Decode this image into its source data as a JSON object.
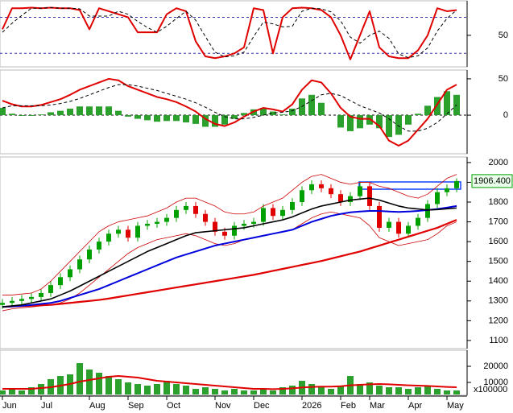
{
  "chart_data": [
    {
      "type": "line",
      "ylim": [
        -1,
        106
      ],
      "yticks": [
        50
      ],
      "levels": [
        80,
        20
      ],
      "level_color": "#3333aa",
      "series": [
        {
          "type": "line",
          "color": "#e00000",
          "width": 2,
          "values": [
            60,
            95,
            95,
            96,
            95,
            96,
            95,
            95,
            92,
            60,
            95,
            90,
            85,
            80,
            55,
            55,
            55,
            85,
            95,
            90,
            40,
            15,
            12,
            15,
            20,
            30,
            95,
            92,
            20,
            80,
            95,
            96,
            95,
            92,
            80,
            50,
            10,
            50,
            90,
            30,
            15,
            12,
            12,
            25,
            50,
            95,
            90,
            92
          ]
        },
        {
          "type": "line",
          "color": "#000000",
          "width": 1,
          "dash": true,
          "values": [
            55,
            70,
            83,
            95,
            95,
            96,
            95,
            95,
            94,
            82,
            82,
            82,
            90,
            85,
            73,
            63,
            55,
            65,
            78,
            90,
            75,
            48,
            22,
            14,
            16,
            22,
            48,
            72,
            69,
            64,
            65,
            90,
            95,
            94,
            89,
            74,
            47,
            37,
            50,
            57,
            45,
            19,
            13,
            16,
            29,
            57,
            78,
            92
          ]
        }
      ]
    },
    {
      "type": "combo",
      "ylim": [
        -52,
        61
      ],
      "yticks": [
        50,
        0
      ],
      "levels": [
        0
      ],
      "level_color": "#000000",
      "series": [
        {
          "type": "bar",
          "color": "#2ca02c",
          "values": [
            10,
            2,
            -1,
            -1,
            1,
            4,
            6,
            9,
            12,
            12,
            12,
            12,
            6,
            -2,
            -5,
            -7,
            -9,
            -8,
            -8,
            -10,
            -12,
            -16,
            -16,
            -13,
            -5,
            3,
            8,
            10,
            5,
            1,
            9,
            23,
            28,
            17,
            0,
            -17,
            -22,
            -18,
            -13,
            -18,
            -30,
            -27,
            -13,
            2,
            13,
            25,
            33,
            28
          ]
        },
        {
          "type": "line",
          "color": "#e00000",
          "width": 2,
          "values": [
            20,
            15,
            12,
            12,
            14,
            18,
            22,
            28,
            35,
            40,
            45,
            50,
            48,
            40,
            35,
            30,
            25,
            22,
            18,
            12,
            5,
            -5,
            -12,
            -15,
            -10,
            -2,
            5,
            10,
            8,
            5,
            15,
            35,
            48,
            45,
            30,
            10,
            -2,
            -5,
            -5,
            -15,
            -35,
            -42,
            -35,
            -20,
            -5,
            15,
            35,
            42
          ]
        },
        {
          "type": "line",
          "color": "#000000",
          "width": 1,
          "dash": true,
          "values": [
            10,
            13,
            13,
            13,
            13,
            14,
            16,
            19,
            23,
            28,
            33,
            38,
            42,
            42,
            40,
            37,
            34,
            30,
            26,
            22,
            17,
            11,
            4,
            -2,
            -5,
            -5,
            -3,
            0,
            3,
            4,
            6,
            12,
            20,
            28,
            30,
            27,
            20,
            13,
            8,
            3,
            -5,
            -15,
            -22,
            -22,
            -18,
            -10,
            2,
            14
          ]
        }
      ]
    },
    {
      "type": "candlestick",
      "ylim": [
        1063,
        2024
      ],
      "yticks": [
        1100,
        1200,
        1300,
        1400,
        1500,
        1600,
        1700,
        1800,
        1900,
        2000
      ],
      "up_color": "#00a000",
      "down_color": "#e00000",
      "ohlc": {
        "open": [
          1280,
          1290,
          1300,
          1310,
          1320,
          1340,
          1380,
          1420,
          1460,
          1510,
          1560,
          1600,
          1640,
          1660,
          1620,
          1680,
          1690,
          1700,
          1720,
          1760,
          1780,
          1740,
          1700,
          1650,
          1630,
          1680,
          1690,
          1700,
          1770,
          1730,
          1760,
          1800,
          1860,
          1890,
          1870,
          1840,
          1800,
          1830,
          1880,
          1780,
          1670,
          1700,
          1640,
          1680,
          1720,
          1790,
          1850,
          1870
        ],
        "high": [
          1310,
          1320,
          1330,
          1340,
          1360,
          1400,
          1440,
          1480,
          1530,
          1580,
          1620,
          1660,
          1680,
          1680,
          1700,
          1710,
          1720,
          1740,
          1780,
          1800,
          1800,
          1760,
          1720,
          1670,
          1700,
          1710,
          1720,
          1790,
          1790,
          1780,
          1820,
          1880,
          1910,
          1910,
          1890,
          1860,
          1850,
          1900,
          1900,
          1800,
          1720,
          1720,
          1700,
          1740,
          1810,
          1870,
          1890,
          1920
        ],
        "low": [
          1260,
          1270,
          1280,
          1290,
          1300,
          1320,
          1360,
          1400,
          1440,
          1490,
          1540,
          1580,
          1620,
          1600,
          1600,
          1660,
          1670,
          1680,
          1700,
          1740,
          1720,
          1680,
          1630,
          1610,
          1610,
          1660,
          1670,
          1680,
          1710,
          1710,
          1740,
          1780,
          1840,
          1850,
          1820,
          1780,
          1780,
          1810,
          1760,
          1650,
          1650,
          1620,
          1620,
          1660,
          1700,
          1770,
          1830,
          1850
        ],
        "close": [
          1290,
          1300,
          1310,
          1320,
          1340,
          1380,
          1420,
          1460,
          1510,
          1560,
          1600,
          1640,
          1660,
          1620,
          1680,
          1690,
          1700,
          1720,
          1760,
          1780,
          1740,
          1700,
          1650,
          1630,
          1680,
          1690,
          1700,
          1770,
          1730,
          1760,
          1800,
          1860,
          1890,
          1870,
          1840,
          1800,
          1830,
          1880,
          1780,
          1670,
          1700,
          1640,
          1680,
          1720,
          1790,
          1850,
          1870,
          1906.4
        ]
      },
      "series": [
        {
          "type": "line",
          "color": "#cc0000",
          "width": 0.8,
          "values": [
            1330,
            1330,
            1335,
            1340,
            1360,
            1400,
            1450,
            1500,
            1550,
            1600,
            1650,
            1680,
            1700,
            1710,
            1720,
            1730,
            1750,
            1770,
            1800,
            1820,
            1820,
            1800,
            1780,
            1750,
            1740,
            1740,
            1750,
            1780,
            1800,
            1820,
            1860,
            1900,
            1930,
            1940,
            1920,
            1900,
            1890,
            1900,
            1900,
            1880,
            1870,
            1850,
            1830,
            1820,
            1840,
            1880,
            1920,
            1940
          ]
        },
        {
          "type": "line",
          "color": "#cc0000",
          "width": 0.8,
          "values": [
            1250,
            1260,
            1265,
            1270,
            1275,
            1280,
            1290,
            1310,
            1340,
            1380,
            1420,
            1460,
            1500,
            1540,
            1570,
            1590,
            1610,
            1620,
            1630,
            1640,
            1630,
            1610,
            1590,
            1580,
            1590,
            1610,
            1620,
            1630,
            1640,
            1650,
            1660,
            1690,
            1720,
            1740,
            1750,
            1740,
            1730,
            1720,
            1680,
            1620,
            1600,
            1580,
            1590,
            1600,
            1610,
            1640,
            1680,
            1700
          ]
        },
        {
          "type": "line",
          "color": "#e00000",
          "width": 2.2,
          "values": [
            1270,
            1272,
            1274,
            1276,
            1278,
            1280,
            1285,
            1290,
            1295,
            1300,
            1305,
            1312,
            1320,
            1328,
            1336,
            1344,
            1352,
            1360,
            1368,
            1376,
            1384,
            1392,
            1400,
            1408,
            1416,
            1424,
            1432,
            1442,
            1452,
            1462,
            1472,
            1482,
            1492,
            1502,
            1514,
            1526,
            1538,
            1550,
            1565,
            1580,
            1595,
            1610,
            1625,
            1640,
            1655,
            1670,
            1690,
            1710
          ]
        },
        {
          "type": "line",
          "color": "#0000dd",
          "width": 2,
          "values": [
            1270,
            1272,
            1275,
            1280,
            1285,
            1290,
            1300,
            1315,
            1330,
            1345,
            1360,
            1380,
            1400,
            1420,
            1440,
            1460,
            1480,
            1500,
            1520,
            1535,
            1550,
            1565,
            1580,
            1590,
            1600,
            1610,
            1620,
            1630,
            1640,
            1650,
            1660,
            1680,
            1700,
            1715,
            1730,
            1740,
            1748,
            1752,
            1755,
            1755,
            1752,
            1750,
            1752,
            1755,
            1760,
            1765,
            1772,
            1780
          ]
        },
        {
          "type": "line",
          "color": "#000000",
          "width": 1.6,
          "values": [
            1270,
            1275,
            1280,
            1290,
            1300,
            1310,
            1330,
            1350,
            1375,
            1400,
            1425,
            1450,
            1475,
            1500,
            1525,
            1550,
            1570,
            1590,
            1610,
            1630,
            1645,
            1650,
            1655,
            1660,
            1665,
            1670,
            1680,
            1690,
            1700,
            1710,
            1725,
            1745,
            1765,
            1780,
            1790,
            1800,
            1810,
            1815,
            1820,
            1810,
            1795,
            1780,
            1770,
            1765,
            1760,
            1762,
            1766,
            1770
          ]
        }
      ],
      "last_price": {
        "value": 1906.4,
        "label": "1906.400"
      }
    },
    {
      "type": "combo",
      "ylim": [
        2500,
        29500
      ],
      "yticks": [
        20000,
        10000
      ],
      "unit_label": "x100000",
      "categories": [
        "Jun",
        null,
        null,
        null,
        "Jul",
        null,
        null,
        null,
        null,
        "Aug",
        null,
        null,
        null,
        "Sep",
        null,
        null,
        null,
        "Oct",
        null,
        null,
        null,
        null,
        "Nov",
        null,
        null,
        null,
        "Dec",
        null,
        null,
        null,
        null,
        "2026",
        null,
        null,
        null,
        "Feb",
        null,
        null,
        "Mar",
        null,
        null,
        null,
        "Apr",
        null,
        null,
        null,
        "May",
        null
      ],
      "series": [
        {
          "type": "bar",
          "color": "#2ca02c",
          "values": [
            5000,
            6000,
            5000,
            7000,
            9000,
            12000,
            14000,
            15000,
            22000,
            18000,
            16000,
            14000,
            12000,
            10000,
            9000,
            8000,
            9000,
            11000,
            9000,
            8000,
            6000,
            7000,
            6000,
            5000,
            6000,
            5000,
            5000,
            6000,
            5000,
            7000,
            8000,
            11000,
            9000,
            7000,
            6000,
            8000,
            14000,
            9000,
            10000,
            8000,
            7000,
            7000,
            6000,
            7000,
            8000,
            6000,
            5000,
            5000
          ]
        },
        {
          "type": "line",
          "color": "#e00000",
          "width": 2,
          "values": [
            6000,
            6000,
            6000,
            6000,
            6500,
            7000,
            8000,
            9000,
            10500,
            11500,
            12500,
            13500,
            14000,
            13500,
            13000,
            12000,
            11000,
            10500,
            10000,
            9500,
            9000,
            8500,
            8000,
            7500,
            7000,
            6500,
            6000,
            6000,
            5800,
            6000,
            6300,
            6800,
            7200,
            7400,
            7400,
            7600,
            8200,
            8500,
            8800,
            9000,
            8800,
            8500,
            8200,
            8000,
            7800,
            7500,
            7200,
            7000
          ]
        }
      ]
    }
  ]
}
